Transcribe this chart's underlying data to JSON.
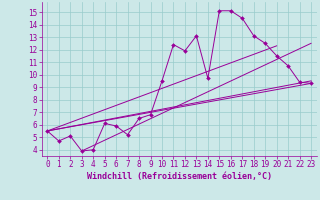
{
  "title": "",
  "xlabel": "Windchill (Refroidissement éolien,°C)",
  "ylabel": "",
  "bg_color": "#cce8e8",
  "line_color": "#990099",
  "grid_color": "#99cccc",
  "xlim": [
    -0.5,
    23.5
  ],
  "ylim": [
    3.5,
    15.8
  ],
  "yticks": [
    4,
    5,
    6,
    7,
    8,
    9,
    10,
    11,
    12,
    13,
    14,
    15
  ],
  "xticks": [
    0,
    1,
    2,
    3,
    4,
    5,
    6,
    7,
    8,
    9,
    10,
    11,
    12,
    13,
    14,
    15,
    16,
    17,
    18,
    19,
    20,
    21,
    22,
    23
  ],
  "main_x": [
    0,
    1,
    2,
    3,
    4,
    5,
    6,
    7,
    8,
    9,
    10,
    11,
    12,
    13,
    14,
    15,
    16,
    17,
    18,
    19,
    20,
    21,
    22,
    23
  ],
  "main_y": [
    5.5,
    4.7,
    5.1,
    3.9,
    4.0,
    6.1,
    5.9,
    5.2,
    6.5,
    6.8,
    9.5,
    12.4,
    11.9,
    13.1,
    9.7,
    15.1,
    15.1,
    14.5,
    13.1,
    12.5,
    11.5,
    10.7,
    9.4,
    9.3
  ],
  "reg_lines": [
    {
      "x": [
        0,
        23
      ],
      "y": [
        5.5,
        9.3
      ]
    },
    {
      "x": [
        0,
        23
      ],
      "y": [
        5.5,
        9.5
      ]
    },
    {
      "x": [
        3,
        23
      ],
      "y": [
        3.9,
        12.5
      ]
    },
    {
      "x": [
        0,
        20
      ],
      "y": [
        5.5,
        12.3
      ]
    }
  ]
}
